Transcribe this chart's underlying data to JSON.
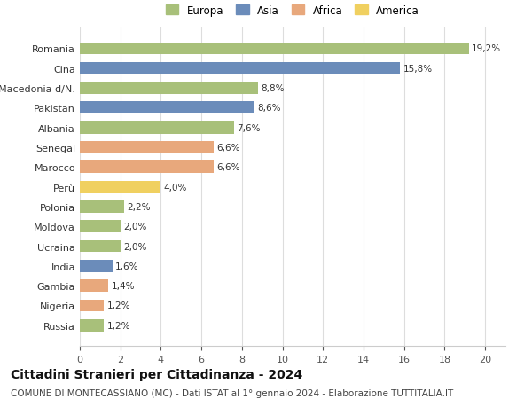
{
  "countries": [
    "Russia",
    "Nigeria",
    "Gambia",
    "India",
    "Ucraina",
    "Moldova",
    "Polonia",
    "Perù",
    "Marocco",
    "Senegal",
    "Albania",
    "Pakistan",
    "Macedonia d/N.",
    "Cina",
    "Romania"
  ],
  "values": [
    1.2,
    1.2,
    1.4,
    1.6,
    2.0,
    2.0,
    2.2,
    4.0,
    6.6,
    6.6,
    7.6,
    8.6,
    8.8,
    15.8,
    19.2
  ],
  "continents": [
    "Europa",
    "Africa",
    "Africa",
    "Asia",
    "Europa",
    "Europa",
    "Europa",
    "America",
    "Africa",
    "Africa",
    "Europa",
    "Asia",
    "Europa",
    "Asia",
    "Europa"
  ],
  "continent_colors": {
    "Europa": "#a8c07a",
    "Asia": "#6b8cba",
    "Africa": "#e8a87c",
    "America": "#f0d060"
  },
  "labels": [
    "1,2%",
    "1,2%",
    "1,4%",
    "1,6%",
    "2,0%",
    "2,0%",
    "2,2%",
    "4,0%",
    "6,6%",
    "6,6%",
    "7,6%",
    "8,6%",
    "8,8%",
    "15,8%",
    "19,2%"
  ],
  "xlim": [
    0,
    21
  ],
  "xticks": [
    0,
    2,
    4,
    6,
    8,
    10,
    12,
    14,
    16,
    18,
    20
  ],
  "title": "Cittadini Stranieri per Cittadinanza - 2024",
  "subtitle": "COMUNE DI MONTECASSIANO (MC) - Dati ISTAT al 1° gennaio 2024 - Elaborazione TUTTITALIA.IT",
  "background_color": "#ffffff",
  "grid_color": "#dddddd",
  "bar_height": 0.62,
  "title_fontsize": 10,
  "subtitle_fontsize": 7.5,
  "label_fontsize": 7.5,
  "tick_fontsize": 8,
  "legend_fontsize": 8.5
}
